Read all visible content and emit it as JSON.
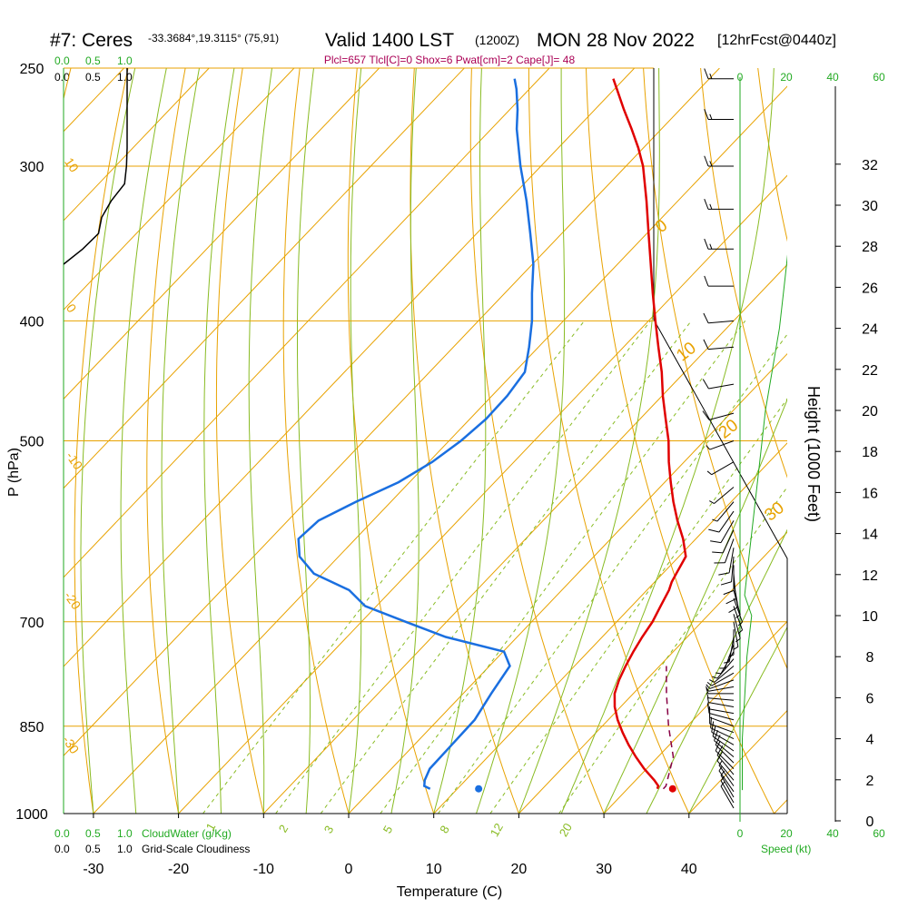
{
  "header": {
    "station": "#7: Ceres",
    "coords": "-33.3684°,19.3115° (75,91)",
    "valid": "Valid 1400 LST",
    "utc": "(1200Z)",
    "date": "MON 28 Nov 2022",
    "forecast": "[12hrFcst@0440z]",
    "indices": "Plcl=657 Tlcl[C]=0 Shox=6 Pwat[cm]=2 Cape[J]= 48"
  },
  "colors": {
    "isobar": "#e8a200",
    "isotherm": "#e8a200",
    "adiabat": "#e8a200",
    "moist_adiabat": "#88bb22",
    "mixing_ratio": "#88bb22",
    "temperature": "#e00000",
    "dewpoint": "#1a6fe0",
    "parcel": "#880044",
    "cloud": "#22aa22",
    "index_text": "#aa0055"
  },
  "top_scales": {
    "cloudwater_ticks": [
      "0.0",
      "0.5",
      "1.0"
    ],
    "cloudiness_ticks": [
      "0.0",
      "0.5",
      "1.0"
    ]
  },
  "bottom_scales": {
    "cloudwater_ticks": [
      "0.0",
      "0.5",
      "1.0"
    ],
    "cloudwater_label": "CloudWater (g/Kg)",
    "cloudiness_ticks": [
      "0.0",
      "0.5",
      "1.0"
    ],
    "cloudiness_label": "Grid-Scale Cloudiness"
  },
  "speed_scale": {
    "ticks": [
      "0",
      "20",
      "40",
      "60"
    ],
    "label": "Speed (kt)"
  },
  "isotherm_labels": [
    "0",
    "10",
    "20",
    "30"
  ],
  "left_labels": [
    "10",
    "0",
    "-10",
    "-20",
    "-30"
  ],
  "mixing_labels": [
    "1",
    "2",
    "3",
    "5",
    "8",
    "12",
    "20"
  ],
  "chart_data": {
    "type": "skew-t",
    "xlabel": "Temperature (C)",
    "ylabel": "P (hPa)",
    "y2label": "Height (1000 Feet)",
    "x_ticks": [
      -30,
      -20,
      -10,
      0,
      10,
      20,
      30,
      40
    ],
    "p_ticks": [
      250,
      300,
      400,
      500,
      700,
      850,
      1000
    ],
    "height_ticks": [
      0,
      2,
      4,
      6,
      8,
      10,
      12,
      14,
      16,
      18,
      20,
      22,
      24,
      26,
      28,
      30,
      32
    ],
    "temperature": {
      "p": [
        955,
        950,
        940,
        920,
        900,
        880,
        860,
        840,
        820,
        800,
        780,
        760,
        740,
        720,
        700,
        680,
        660,
        650,
        640,
        620,
        600,
        580,
        560,
        540,
        520,
        500,
        480,
        460,
        440,
        420,
        400,
        380,
        360,
        340,
        320,
        300,
        290,
        280,
        270,
        260,
        255
      ],
      "t": [
        33.5,
        33.3,
        32.2,
        29.7,
        27.4,
        25.2,
        23.1,
        21.1,
        19.3,
        17.8,
        16.8,
        16.0,
        15.3,
        14.7,
        14.2,
        13.4,
        12.6,
        12.0,
        11.6,
        10.8,
        8.5,
        5.8,
        3.2,
        0.7,
        -1.8,
        -4.2,
        -7.0,
        -9.9,
        -12.7,
        -15.9,
        -19.2,
        -22.6,
        -26.1,
        -29.8,
        -33.7,
        -38.0,
        -40.6,
        -43.5,
        -46.6,
        -49.7,
        -51.3
      ]
    },
    "dewpoint": {
      "p": [
        955,
        950,
        940,
        920,
        880,
        840,
        800,
        760,
        740,
        720,
        700,
        680,
        660,
        640,
        620,
        600,
        580,
        560,
        540,
        520,
        500,
        480,
        460,
        440,
        420,
        400,
        380,
        360,
        340,
        320,
        300,
        280,
        270,
        260,
        255
      ],
      "td": [
        6.8,
        5.8,
        5.2,
        4.5,
        4.4,
        4.3,
        3.3,
        2.4,
        0.1,
        -8.4,
        -14.8,
        -21.3,
        -25.0,
        -31.0,
        -34.6,
        -36.7,
        -36.4,
        -34.1,
        -31.3,
        -29.6,
        -28.6,
        -28.1,
        -28.2,
        -28.8,
        -31.1,
        -33.7,
        -36.8,
        -39.9,
        -43.7,
        -47.8,
        -52.4,
        -57.0,
        -59.1,
        -61.5,
        -62.9
      ]
    },
    "parcel": {
      "p": [
        955,
        950,
        900,
        850,
        800,
        760
      ],
      "t": [
        34.2,
        34.2,
        31.8,
        27.8,
        23.9,
        20.8
      ]
    },
    "surface": {
      "p": 955,
      "t": 35.3,
      "td": 12.5
    },
    "cloudiness": {
      "p": [
        250,
        255,
        270,
        280,
        290,
        300,
        310,
        320,
        330,
        340,
        350,
        360
      ],
      "value": [
        1.0,
        1.0,
        1.0,
        1.0,
        1.0,
        0.99,
        0.96,
        0.75,
        0.6,
        0.55,
        0.3,
        0.0
      ]
    },
    "wind_speed": {
      "height_kft": [
        1.5,
        2.5,
        4,
        6,
        8,
        10,
        11,
        12,
        13,
        14,
        16,
        18,
        20,
        22,
        24,
        26,
        28,
        30,
        32,
        34
      ],
      "speed_kt": [
        1,
        1,
        1,
        2,
        3,
        5,
        2,
        3,
        4,
        5,
        7,
        9,
        11,
        14,
        17,
        19,
        21,
        24,
        29,
        34
      ]
    },
    "wind_barbs": {
      "p": [
        990,
        980,
        970,
        960,
        950,
        940,
        930,
        920,
        910,
        900,
        890,
        880,
        870,
        860,
        850,
        840,
        830,
        820,
        810,
        800,
        790,
        780,
        770,
        760,
        750,
        740,
        730,
        720,
        710,
        700,
        690,
        680,
        670,
        660,
        650,
        640,
        630,
        620,
        610,
        600,
        590,
        580,
        570,
        560,
        545,
        520,
        500,
        475,
        450,
        420,
        400,
        375,
        350,
        325,
        300,
        275,
        255
      ],
      "dir": [
        330,
        330,
        330,
        325,
        325,
        320,
        320,
        315,
        315,
        310,
        305,
        300,
        295,
        290,
        290,
        285,
        280,
        280,
        275,
        270,
        260,
        250,
        240,
        230,
        220,
        210,
        200,
        190,
        180,
        170,
        165,
        160,
        160,
        165,
        170,
        175,
        180,
        185,
        190,
        200,
        205,
        210,
        215,
        220,
        230,
        240,
        250,
        255,
        260,
        265,
        265,
        270,
        270,
        270,
        270,
        270,
        270
      ],
      "spd": [
        5,
        6,
        6,
        7,
        7,
        8,
        8,
        8,
        9,
        9,
        9,
        9,
        9,
        8,
        8,
        8,
        7,
        7,
        7,
        6,
        6,
        5,
        5,
        5,
        4,
        4,
        3,
        3,
        3,
        3,
        3,
        4,
        5,
        7,
        8,
        8,
        9,
        9,
        9,
        9,
        9,
        9,
        8,
        7,
        6,
        5,
        6,
        8,
        9,
        10,
        11,
        12,
        13,
        14,
        15,
        16,
        17
      ]
    }
  }
}
